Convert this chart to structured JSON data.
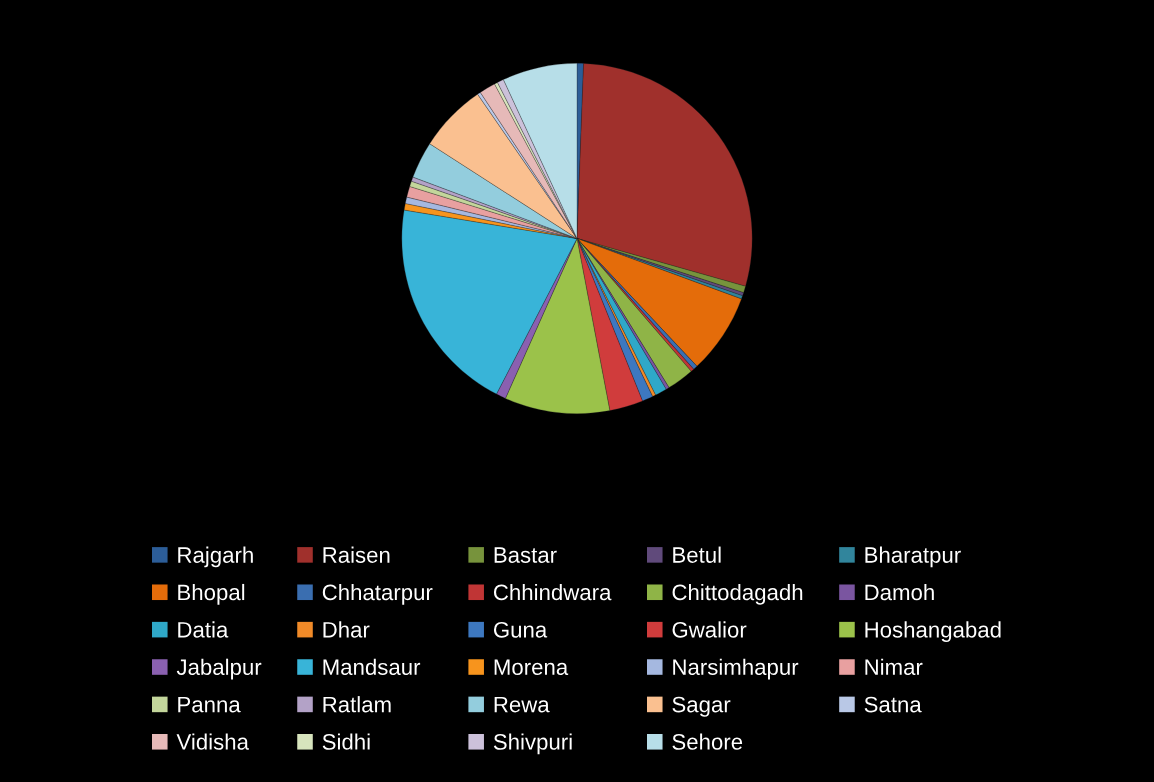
{
  "chart_data": {
    "type": "pie",
    "categories": [
      "Rajgarh",
      "Raisen",
      "Bastar",
      "Betul",
      "Bharatpur",
      "Bhopal",
      "Chhatarpur",
      "Chhindwara",
      "Chittodagadh",
      "Damoh",
      "Datia",
      "Dhar",
      "Guna",
      "Gwalior",
      "Hoshangabad",
      "Jabalpur",
      "Mandsaur",
      "Morena",
      "Narsimhapur",
      "Nimar",
      "Panna",
      "Ratlam",
      "Rewa",
      "Sagar",
      "Satna",
      "Vidisha",
      "Sidhi",
      "Shivpuri",
      "Sehore"
    ],
    "values": [
      0.6,
      28.8,
      0.6,
      0.3,
      0.3,
      7.4,
      0.4,
      0.3,
      2.5,
      0.3,
      1.1,
      0.3,
      1.0,
      3.1,
      9.7,
      0.9,
      20,
      0.6,
      0.6,
      1.0,
      0.5,
      0.4,
      3.4,
      6.3,
      0.3,
      1.5,
      0.3,
      0.6,
      6.9
    ],
    "colors": [
      "#2c5d98",
      "#a0302c",
      "#77933c",
      "#604a7b",
      "#31859c",
      "#e46c0a",
      "#3a6eb0",
      "#c03535",
      "#8fb447",
      "#7a55a0",
      "#2fa8c8",
      "#f08a28",
      "#3d78c0",
      "#d03c3c",
      "#9bc24a",
      "#8a60b0",
      "#38b4d8",
      "#f7941d",
      "#a5b8e0",
      "#e8a0a0",
      "#c3d69b",
      "#b3a2c7",
      "#93cddd",
      "#fac090",
      "#b9c8e6",
      "#e6b9b8",
      "#d7e4bd",
      "#ccc1da",
      "#b7dee8"
    ],
    "legend": "bottom"
  }
}
